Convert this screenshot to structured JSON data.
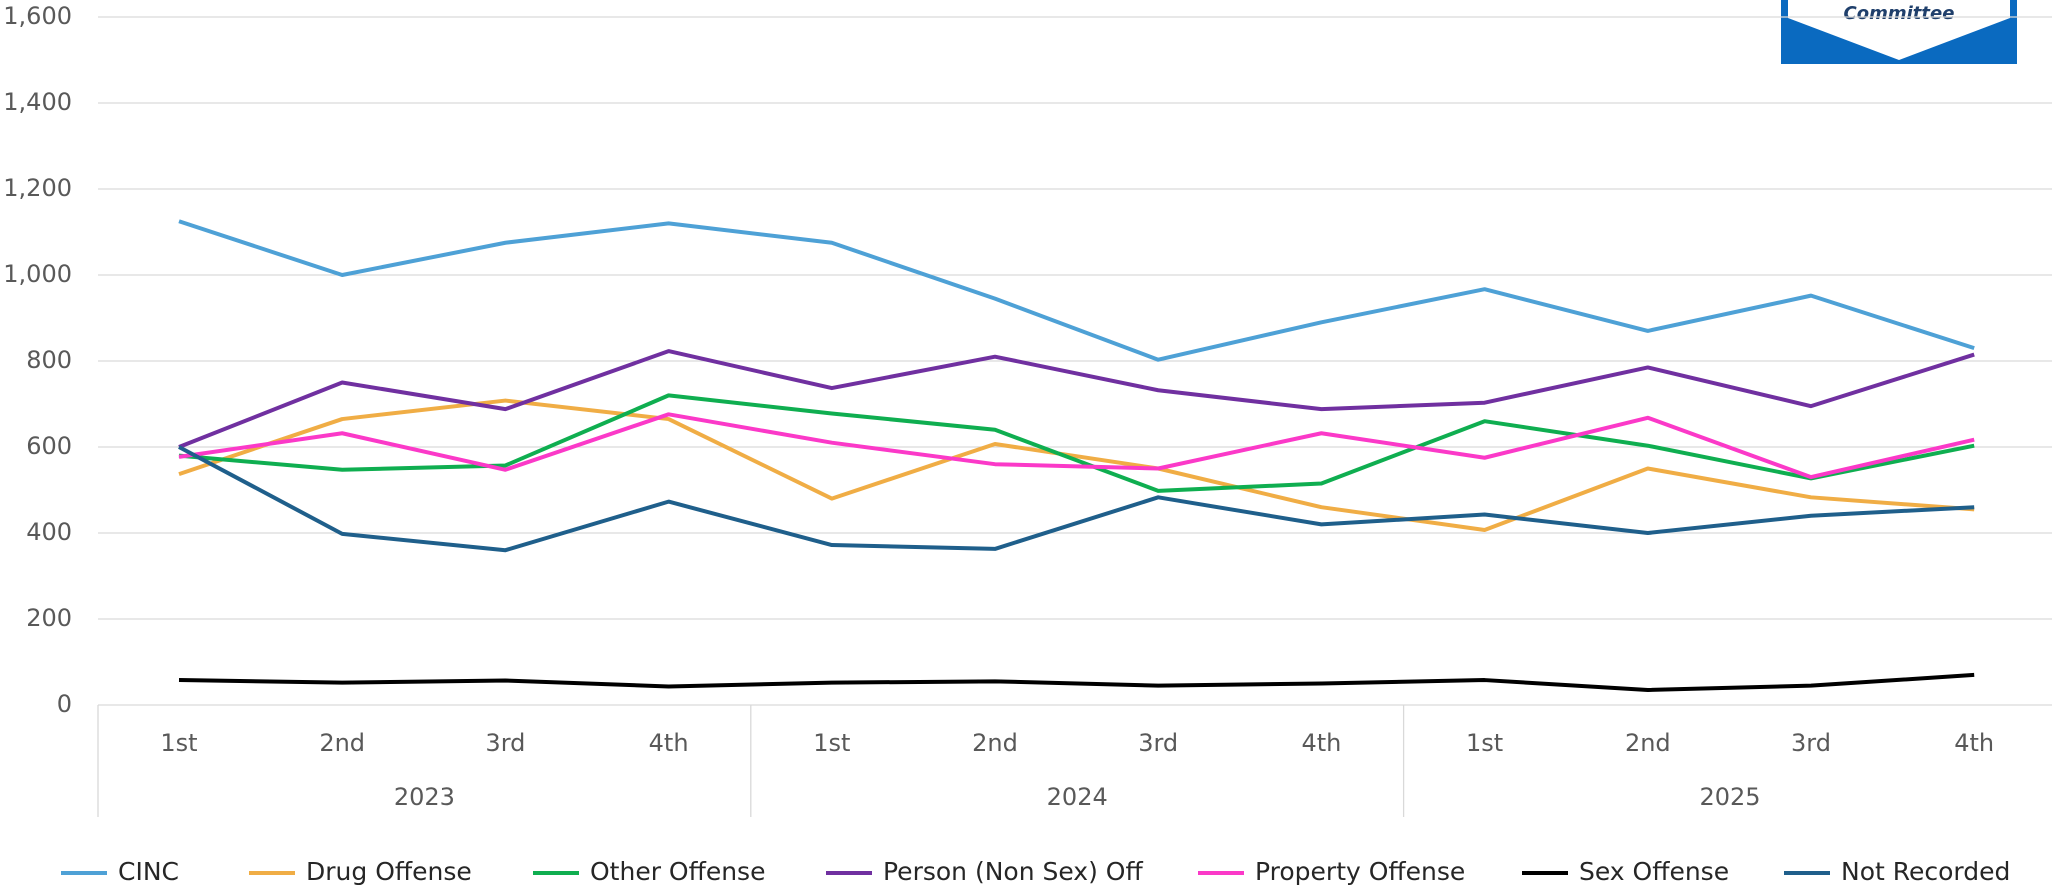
{
  "chart_data": {
    "type": "line",
    "categories": [
      "1st",
      "2nd",
      "3rd",
      "4th",
      "1st",
      "2nd",
      "3rd",
      "4th",
      "1st",
      "2nd",
      "3rd",
      "4th"
    ],
    "years": [
      "2023",
      "2024",
      "2025"
    ],
    "ylim": [
      0,
      1600
    ],
    "yticks": [
      0,
      200,
      400,
      600,
      800,
      {
        "value": 1000,
        "label": "1,000"
      },
      {
        "value": 1200,
        "label": "1,200"
      },
      {
        "value": 1400,
        "label": "1,400"
      },
      {
        "value": 1600,
        "label": "1,600"
      }
    ],
    "grid": true,
    "legend": "bottom",
    "series": [
      {
        "name": "CINC",
        "color": "#4ea1d6",
        "values": [
          1125,
          1000,
          1075,
          1120,
          1075,
          945,
          803,
          890,
          967,
          870,
          952,
          830
        ]
      },
      {
        "name": "Drug Offense",
        "color": "#f0ad45",
        "values": [
          537,
          665,
          708,
          665,
          480,
          607,
          550,
          460,
          407,
          550,
          483,
          455
        ]
      },
      {
        "name": "Other Offense",
        "color": "#0fae50",
        "values": [
          580,
          547,
          557,
          720,
          678,
          640,
          498,
          515,
          660,
          603,
          527,
          603
        ]
      },
      {
        "name": "Person (Non Sex) Off",
        "color": "#7030a0",
        "values": [
          600,
          750,
          688,
          823,
          737,
          810,
          732,
          688,
          703,
          785,
          695,
          815
        ]
      },
      {
        "name": "Property Offense",
        "color": "#fb39c8",
        "values": [
          577,
          632,
          547,
          676,
          610,
          560,
          550,
          632,
          575,
          668,
          530,
          617
        ]
      },
      {
        "name": "Sex Offense",
        "color": "#000000",
        "values": [
          58,
          52,
          57,
          43,
          52,
          55,
          45,
          50,
          58,
          35,
          45,
          70
        ]
      },
      {
        "name": "Not Recorded",
        "color": "#1f5f8b",
        "values": [
          600,
          398,
          360,
          473,
          372,
          363,
          483,
          420,
          443,
          400,
          440,
          460
        ]
      }
    ]
  },
  "logo": {
    "text": "Committee"
  }
}
